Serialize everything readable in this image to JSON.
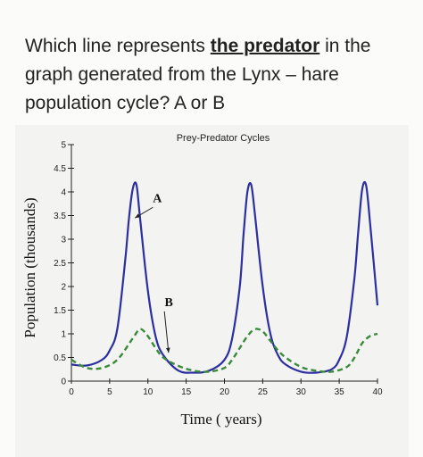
{
  "question": {
    "part1": "Which line represents ",
    "emphasis": "the predator",
    "part2": " in the graph generated from the Lynx – hare population cycle? A or B"
  },
  "chart_data": {
    "type": "line",
    "title": "Prey-Predator Cycles",
    "xlabel": "Time ( years)",
    "ylabel": "Population (thousands)",
    "xlim": [
      0,
      40
    ],
    "ylim": [
      0,
      5
    ],
    "xticks": [
      "0",
      "5",
      "10",
      "15",
      "20",
      "25",
      "30",
      "35",
      "40"
    ],
    "yticks": [
      "0",
      "0.5",
      "1",
      "1.5",
      "2",
      "2.5",
      "3",
      "3.5",
      "4",
      "4.5",
      "5"
    ],
    "grid": false,
    "series": [
      {
        "name": "A",
        "style": "solid",
        "color": "#2b2fa0",
        "x": [
          0,
          2,
          4,
          5,
          6,
          7,
          7.5,
          8,
          8.5,
          9,
          10,
          11,
          12,
          14,
          16,
          18,
          20,
          21,
          22,
          22.5,
          23,
          23.5,
          24,
          25,
          26,
          27,
          28,
          30,
          32,
          34,
          35,
          36,
          37,
          37.5,
          38,
          38.5,
          39,
          40
        ],
        "y": [
          0.35,
          0.33,
          0.45,
          0.65,
          1.1,
          2.5,
          3.4,
          4.05,
          4.15,
          3.4,
          1.9,
          0.95,
          0.55,
          0.22,
          0.18,
          0.22,
          0.45,
          0.9,
          2.0,
          3.1,
          4.0,
          4.15,
          3.5,
          2.0,
          1.0,
          0.55,
          0.35,
          0.2,
          0.18,
          0.25,
          0.45,
          0.95,
          2.2,
          3.2,
          4.05,
          4.15,
          3.4,
          1.6
        ]
      },
      {
        "name": "B",
        "style": "dashed",
        "color": "#3a8a3a",
        "x": [
          0,
          2,
          4,
          6,
          8,
          9,
          10,
          11,
          12,
          14,
          16,
          18,
          20,
          21,
          22,
          23,
          24,
          25,
          26,
          27,
          28,
          30,
          32,
          34,
          36,
          37,
          38,
          39,
          40
        ],
        "y": [
          0.45,
          0.28,
          0.28,
          0.45,
          0.9,
          1.1,
          0.95,
          0.7,
          0.5,
          0.32,
          0.22,
          0.2,
          0.28,
          0.45,
          0.7,
          0.95,
          1.1,
          1.05,
          0.85,
          0.65,
          0.5,
          0.3,
          0.22,
          0.2,
          0.3,
          0.5,
          0.8,
          0.95,
          1.0
        ]
      }
    ],
    "annotations": [
      {
        "text": "A",
        "x": 11.0,
        "y": 3.75,
        "arrow_to": [
          8.3,
          3.45
        ]
      },
      {
        "text": "B",
        "x": 12.5,
        "y": 1.55,
        "arrow_to": [
          12.7,
          0.6
        ]
      }
    ]
  }
}
